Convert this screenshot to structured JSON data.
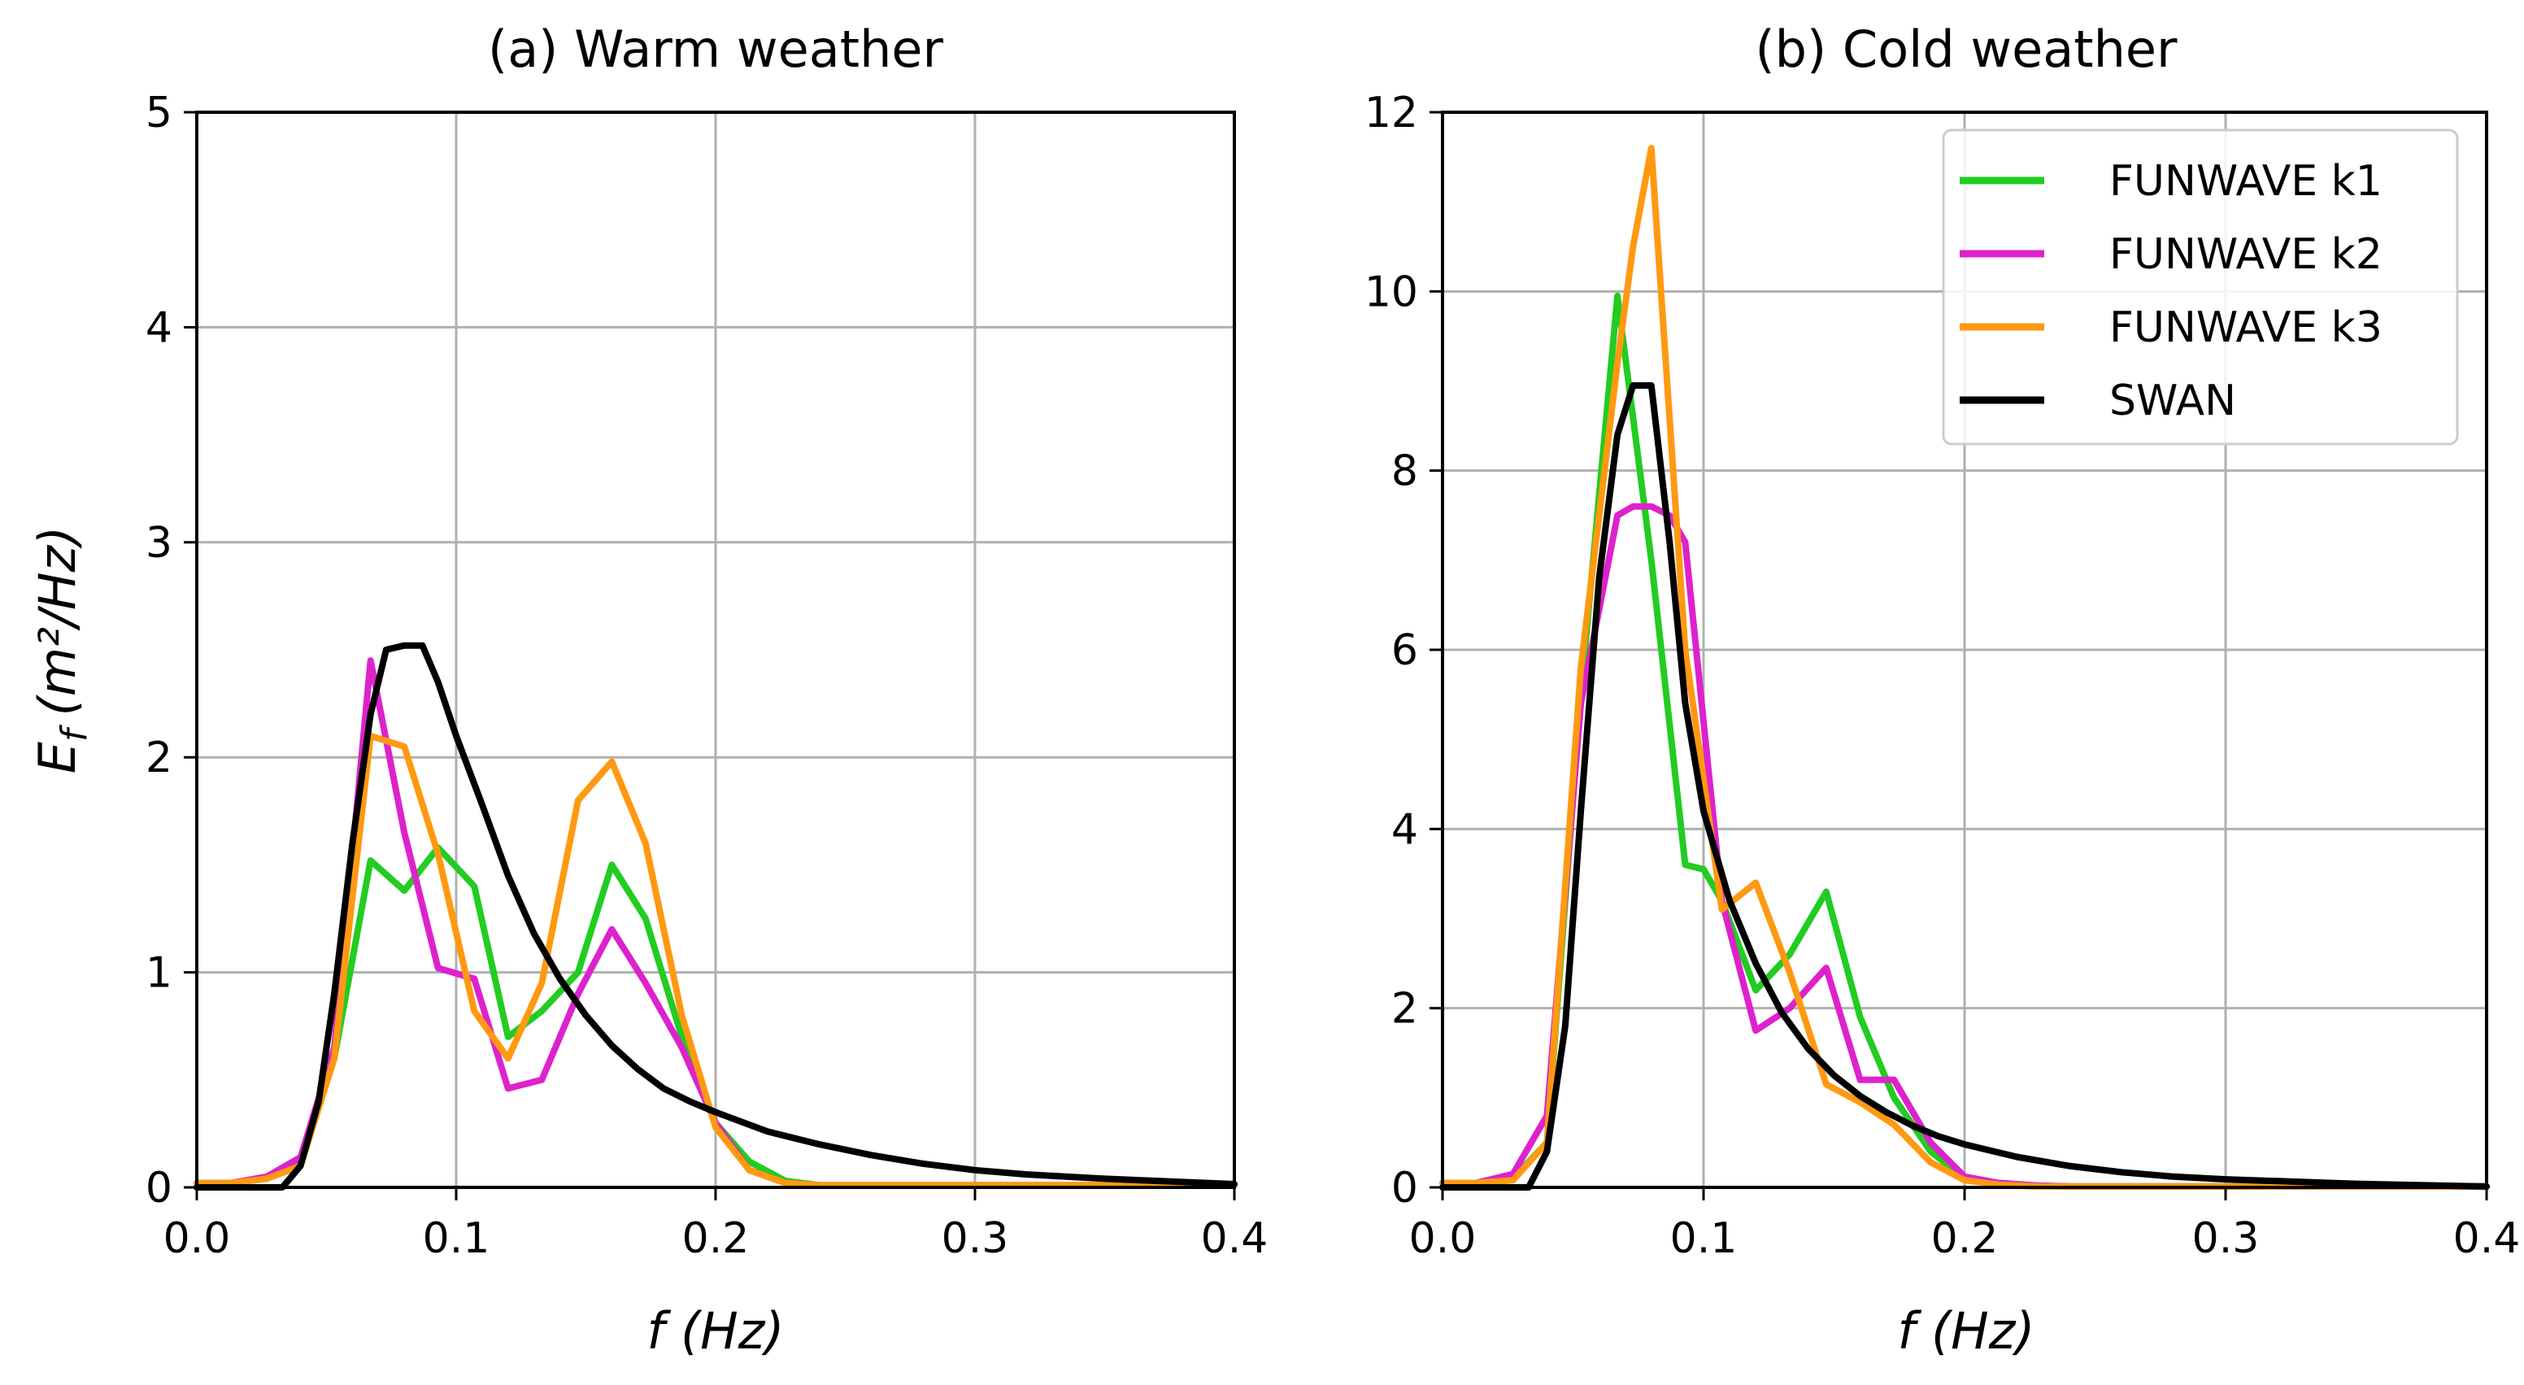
{
  "figure": {
    "colors": {
      "FUNWAVE k1": "#22cc22",
      "FUNWAVE k2": "#dd22cc",
      "FUNWAVE k3": "#ff9911",
      "SWAN": "#000000",
      "grid": "#b0b0b0"
    }
  },
  "chart_data": [
    {
      "type": "line",
      "title": "(a) Warm weather",
      "xlabel": "f (Hz)",
      "ylabel_text": "E",
      "ylabel_sub": "f",
      "ylabel_units": "(m²/Hz)",
      "xlim": [
        0.0,
        0.4
      ],
      "ylim": [
        0,
        5
      ],
      "xticks": [
        0.0,
        0.1,
        0.2,
        0.3,
        0.4
      ],
      "xtick_labels": [
        "0.0",
        "0.1",
        "0.2",
        "0.3",
        "0.4"
      ],
      "yticks": [
        0,
        1,
        2,
        3,
        4,
        5
      ],
      "ytick_labels": [
        "0",
        "1",
        "2",
        "3",
        "4",
        "5"
      ],
      "grid": true,
      "legend": null,
      "series": [
        {
          "name": "FUNWAVE k1",
          "x": [
            0.0,
            0.013,
            0.027,
            0.04,
            0.053,
            0.067,
            0.08,
            0.093,
            0.107,
            0.12,
            0.133,
            0.147,
            0.16,
            0.173,
            0.187,
            0.2,
            0.213,
            0.227,
            0.24,
            0.4
          ],
          "y": [
            0.02,
            0.02,
            0.04,
            0.12,
            0.6,
            1.52,
            1.38,
            1.58,
            1.4,
            0.7,
            0.82,
            1.0,
            1.5,
            1.25,
            0.7,
            0.3,
            0.12,
            0.03,
            0.01,
            0.01
          ]
        },
        {
          "name": "FUNWAVE k2",
          "x": [
            0.0,
            0.013,
            0.027,
            0.04,
            0.053,
            0.067,
            0.08,
            0.093,
            0.107,
            0.12,
            0.133,
            0.147,
            0.16,
            0.173,
            0.187,
            0.2,
            0.213,
            0.227,
            0.24,
            0.4
          ],
          "y": [
            0.02,
            0.02,
            0.05,
            0.14,
            0.65,
            2.45,
            1.65,
            1.02,
            0.97,
            0.46,
            0.5,
            0.9,
            1.2,
            0.95,
            0.65,
            0.3,
            0.08,
            0.02,
            0.01,
            0.01
          ]
        },
        {
          "name": "FUNWAVE k3",
          "x": [
            0.0,
            0.013,
            0.027,
            0.04,
            0.053,
            0.067,
            0.08,
            0.093,
            0.107,
            0.12,
            0.133,
            0.147,
            0.16,
            0.173,
            0.187,
            0.2,
            0.213,
            0.227,
            0.24,
            0.4
          ],
          "y": [
            0.02,
            0.02,
            0.04,
            0.1,
            0.6,
            2.1,
            2.05,
            1.55,
            0.82,
            0.6,
            0.95,
            1.8,
            1.98,
            1.6,
            0.8,
            0.28,
            0.08,
            0.02,
            0.01,
            0.01
          ]
        },
        {
          "name": "SWAN",
          "x": [
            0.0,
            0.033,
            0.04,
            0.047,
            0.053,
            0.06,
            0.067,
            0.073,
            0.08,
            0.087,
            0.093,
            0.1,
            0.11,
            0.12,
            0.13,
            0.14,
            0.15,
            0.16,
            0.17,
            0.18,
            0.19,
            0.2,
            0.22,
            0.24,
            0.26,
            0.28,
            0.3,
            0.32,
            0.35,
            0.4
          ],
          "y": [
            0.0,
            0.0,
            0.1,
            0.4,
            0.9,
            1.6,
            2.2,
            2.5,
            2.52,
            2.52,
            2.35,
            2.1,
            1.78,
            1.45,
            1.18,
            0.97,
            0.8,
            0.66,
            0.55,
            0.46,
            0.4,
            0.35,
            0.26,
            0.2,
            0.15,
            0.11,
            0.08,
            0.06,
            0.04,
            0.015
          ]
        }
      ]
    },
    {
      "type": "line",
      "title": "(b) Cold weather",
      "xlabel": "f (Hz)",
      "xlim": [
        0.0,
        0.4
      ],
      "ylim": [
        0,
        12
      ],
      "xticks": [
        0.0,
        0.1,
        0.2,
        0.3,
        0.4
      ],
      "xtick_labels": [
        "0.0",
        "0.1",
        "0.2",
        "0.3",
        "0.4"
      ],
      "yticks": [
        0,
        2,
        4,
        6,
        8,
        10,
        12
      ],
      "ytick_labels": [
        "0",
        "2",
        "4",
        "6",
        "8",
        "10",
        "12"
      ],
      "grid": true,
      "legend": "top-right",
      "series": [
        {
          "name": "FUNWAVE k1",
          "x": [
            0.0,
            0.013,
            0.027,
            0.04,
            0.053,
            0.067,
            0.08,
            0.093,
            0.1,
            0.107,
            0.12,
            0.133,
            0.147,
            0.16,
            0.173,
            0.187,
            0.2,
            0.213,
            0.227,
            0.24,
            0.4
          ],
          "y": [
            0.05,
            0.05,
            0.1,
            0.5,
            5.5,
            9.95,
            7.0,
            3.6,
            3.55,
            3.2,
            2.2,
            2.6,
            3.3,
            1.9,
            1.0,
            0.4,
            0.1,
            0.05,
            0.02,
            0.01,
            0.01
          ]
        },
        {
          "name": "FUNWAVE k2",
          "x": [
            0.0,
            0.013,
            0.027,
            0.04,
            0.053,
            0.067,
            0.073,
            0.08,
            0.087,
            0.093,
            0.107,
            0.12,
            0.133,
            0.147,
            0.16,
            0.173,
            0.187,
            0.2,
            0.213,
            0.227,
            0.24,
            0.4
          ],
          "y": [
            0.05,
            0.05,
            0.15,
            0.8,
            5.4,
            7.5,
            7.6,
            7.6,
            7.5,
            7.2,
            3.2,
            1.75,
            2.0,
            2.45,
            1.2,
            1.2,
            0.5,
            0.12,
            0.05,
            0.02,
            0.01,
            0.01
          ]
        },
        {
          "name": "FUNWAVE k3",
          "x": [
            0.0,
            0.013,
            0.027,
            0.04,
            0.053,
            0.067,
            0.073,
            0.08,
            0.093,
            0.107,
            0.12,
            0.133,
            0.147,
            0.16,
            0.173,
            0.187,
            0.2,
            0.213,
            0.227,
            0.24,
            0.4
          ],
          "y": [
            0.05,
            0.05,
            0.08,
            0.5,
            5.8,
            9.2,
            10.5,
            11.6,
            6.0,
            3.1,
            3.4,
            2.4,
            1.15,
            0.95,
            0.7,
            0.28,
            0.08,
            0.03,
            0.01,
            0.01,
            0.01
          ]
        },
        {
          "name": "SWAN",
          "x": [
            0.0,
            0.033,
            0.04,
            0.047,
            0.053,
            0.06,
            0.067,
            0.073,
            0.08,
            0.087,
            0.093,
            0.1,
            0.11,
            0.12,
            0.13,
            0.14,
            0.15,
            0.16,
            0.17,
            0.18,
            0.19,
            0.2,
            0.22,
            0.24,
            0.26,
            0.28,
            0.3,
            0.32,
            0.35,
            0.4
          ],
          "y": [
            0.0,
            0.0,
            0.4,
            1.8,
            4.2,
            6.8,
            8.4,
            8.95,
            8.95,
            7.2,
            5.4,
            4.2,
            3.2,
            2.5,
            1.95,
            1.55,
            1.25,
            1.02,
            0.84,
            0.69,
            0.57,
            0.48,
            0.34,
            0.24,
            0.17,
            0.12,
            0.09,
            0.07,
            0.04,
            0.01
          ]
        }
      ]
    }
  ]
}
